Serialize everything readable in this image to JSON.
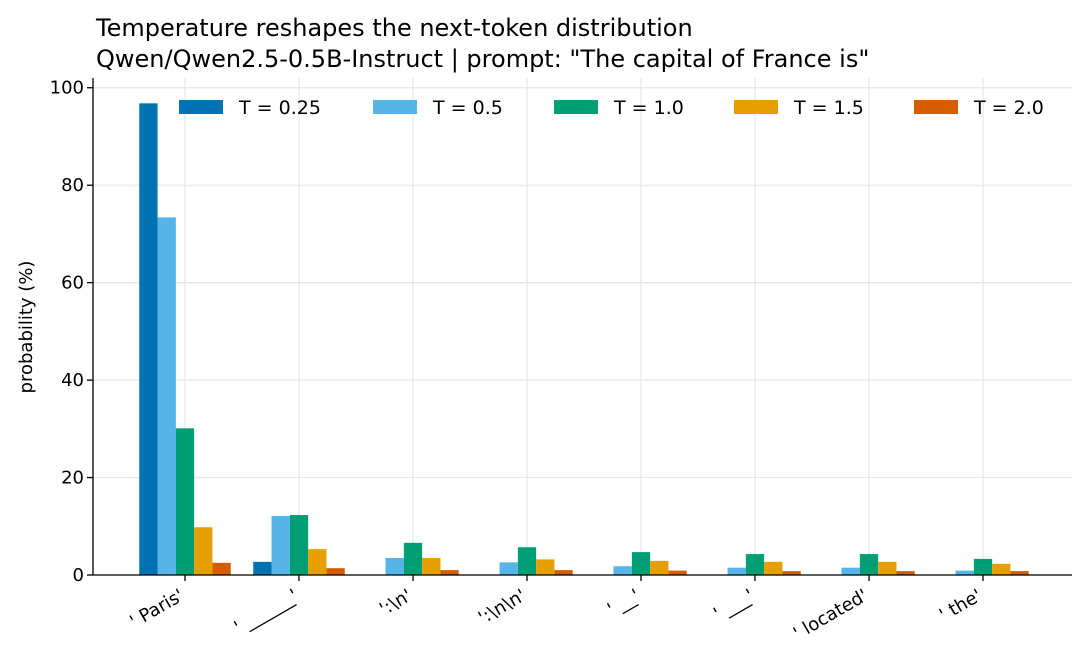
{
  "chart_data": {
    "type": "bar",
    "title": "Temperature reshapes the next-token distribution",
    "subtitle": "Qwen/Qwen2.5-0.5B-Instruct  |  prompt: \"The capital of France is\"",
    "xlabel": "",
    "ylabel": "probability (%)",
    "ylim": [
      0,
      102
    ],
    "yticks": [
      0,
      20,
      40,
      60,
      80,
      100
    ],
    "grid": true,
    "legend_position": "top",
    "categories": [
      "' Paris'",
      "' ______'",
      "':\\n'",
      "':\\n\\n'",
      "' __'",
      "' ___'",
      "' located'",
      "' the'"
    ],
    "series": [
      {
        "name": "T = 0.25",
        "color": "#0072b2",
        "values": [
          96.8,
          2.7,
          0.1,
          0.05,
          0.02,
          0.02,
          0.02,
          0.01
        ]
      },
      {
        "name": "T = 0.5",
        "color": "#56b4e9",
        "values": [
          73.4,
          12.1,
          3.5,
          2.6,
          1.8,
          1.5,
          1.5,
          0.9
        ]
      },
      {
        "name": "T = 1.0",
        "color": "#009e73",
        "values": [
          30.1,
          12.3,
          6.6,
          5.7,
          4.7,
          4.3,
          4.3,
          3.3
        ]
      },
      {
        "name": "T = 1.5",
        "color": "#e69f00",
        "values": [
          9.8,
          5.3,
          3.5,
          3.2,
          2.9,
          2.7,
          2.7,
          2.3
        ]
      },
      {
        "name": "T = 2.0",
        "color": "#d55e00",
        "values": [
          2.5,
          1.4,
          1.0,
          1.0,
          0.9,
          0.8,
          0.8,
          0.8
        ]
      }
    ]
  }
}
